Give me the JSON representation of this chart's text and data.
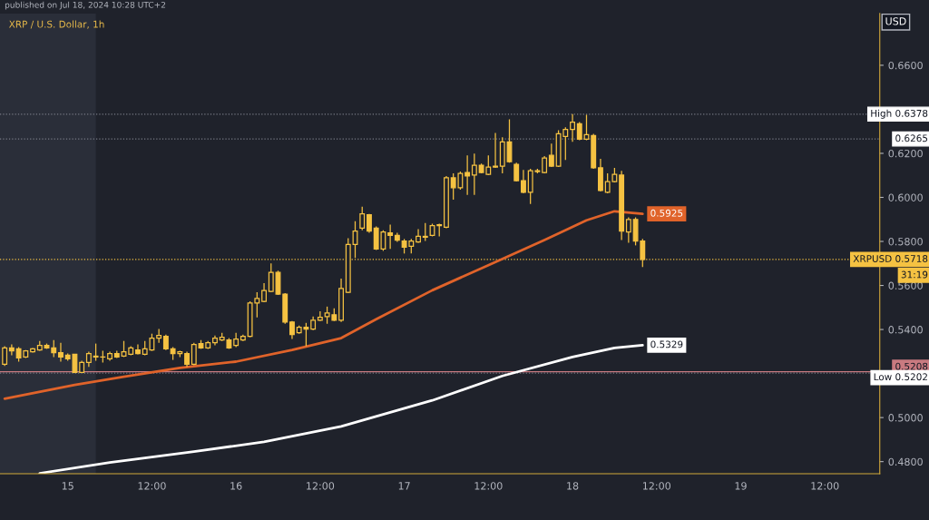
{
  "chart_data": {
    "type": "candlestick",
    "title": "XRP / U.S. Dollar, 1h",
    "ylabel": "USD",
    "color": "#f5c242",
    "x": [
      "2024-07-14T15:00",
      "2024-07-14T16:00",
      "2024-07-14T17:00",
      "2024-07-14T18:00",
      "2024-07-14T19:00",
      "2024-07-14T20:00",
      "2024-07-14T21:00",
      "2024-07-14T22:00",
      "2024-07-14T23:00",
      "2024-07-15T00:00",
      "2024-07-15T01:00",
      "2024-07-15T02:00",
      "2024-07-15T03:00",
      "2024-07-15T04:00",
      "2024-07-15T05:00",
      "2024-07-15T06:00",
      "2024-07-15T07:00",
      "2024-07-15T08:00",
      "2024-07-15T09:00",
      "2024-07-15T10:00",
      "2024-07-15T11:00",
      "2024-07-15T12:00",
      "2024-07-15T13:00",
      "2024-07-15T14:00",
      "2024-07-15T15:00",
      "2024-07-15T16:00",
      "2024-07-15T17:00",
      "2024-07-15T18:00",
      "2024-07-15T19:00",
      "2024-07-15T20:00",
      "2024-07-15T21:00",
      "2024-07-15T22:00",
      "2024-07-15T23:00",
      "2024-07-16T00:00",
      "2024-07-16T01:00",
      "2024-07-16T02:00",
      "2024-07-16T03:00",
      "2024-07-16T04:00",
      "2024-07-16T05:00",
      "2024-07-16T06:00",
      "2024-07-16T07:00",
      "2024-07-16T08:00",
      "2024-07-16T09:00",
      "2024-07-16T10:00",
      "2024-07-16T11:00",
      "2024-07-16T12:00",
      "2024-07-16T13:00",
      "2024-07-16T14:00",
      "2024-07-16T15:00",
      "2024-07-16T16:00",
      "2024-07-16T17:00",
      "2024-07-16T18:00",
      "2024-07-16T19:00",
      "2024-07-16T20:00",
      "2024-07-16T21:00",
      "2024-07-16T22:00",
      "2024-07-16T23:00",
      "2024-07-17T00:00",
      "2024-07-17T01:00",
      "2024-07-17T02:00",
      "2024-07-17T03:00",
      "2024-07-17T04:00",
      "2024-07-17T05:00",
      "2024-07-17T06:00",
      "2024-07-17T07:00",
      "2024-07-17T08:00",
      "2024-07-17T09:00",
      "2024-07-17T10:00",
      "2024-07-17T11:00",
      "2024-07-17T12:00",
      "2024-07-17T13:00",
      "2024-07-17T14:00",
      "2024-07-17T15:00",
      "2024-07-17T16:00",
      "2024-07-17T17:00",
      "2024-07-17T18:00",
      "2024-07-17T19:00",
      "2024-07-17T20:00",
      "2024-07-17T21:00",
      "2024-07-17T22:00",
      "2024-07-17T23:00",
      "2024-07-18T00:00",
      "2024-07-18T01:00",
      "2024-07-18T02:00",
      "2024-07-18T03:00",
      "2024-07-18T04:00",
      "2024-07-18T05:00",
      "2024-07-18T06:00",
      "2024-07-18T07:00",
      "2024-07-18T08:00",
      "2024-07-18T09:00",
      "2024-07-18T10:00"
    ],
    "ohlc": [
      [
        0.5242,
        0.5324,
        0.5234,
        0.5316
      ],
      [
        0.5316,
        0.5332,
        0.5283,
        0.5303
      ],
      [
        0.5312,
        0.532,
        0.5254,
        0.5271
      ],
      [
        0.5275,
        0.5307,
        0.5271,
        0.5303
      ],
      [
        0.5299,
        0.5316,
        0.5295,
        0.5312
      ],
      [
        0.5307,
        0.5348,
        0.5303,
        0.5328
      ],
      [
        0.5328,
        0.5336,
        0.5312,
        0.5316
      ],
      [
        0.5316,
        0.5352,
        0.5275,
        0.5295
      ],
      [
        0.5295,
        0.534,
        0.5254,
        0.5275
      ],
      [
        0.5283,
        0.5291,
        0.5258,
        0.5267
      ],
      [
        0.5287,
        0.5287,
        0.5202,
        0.5205
      ],
      [
        0.5205,
        0.5258,
        0.5202,
        0.525
      ],
      [
        0.525,
        0.5299,
        0.523,
        0.5291
      ],
      [
        0.5279,
        0.5336,
        0.5258,
        0.5275
      ],
      [
        0.5275,
        0.5303,
        0.525,
        0.5275
      ],
      [
        0.5267,
        0.5299,
        0.5258,
        0.5291
      ],
      [
        0.5291,
        0.5303,
        0.5271,
        0.5275
      ],
      [
        0.5279,
        0.5348,
        0.5275,
        0.5299
      ],
      [
        0.5287,
        0.5324,
        0.5283,
        0.5316
      ],
      [
        0.5307,
        0.5332,
        0.5287,
        0.5291
      ],
      [
        0.5287,
        0.5348,
        0.5283,
        0.5312
      ],
      [
        0.5307,
        0.5381,
        0.5303,
        0.5361
      ],
      [
        0.5361,
        0.5402,
        0.534,
        0.5373
      ],
      [
        0.5369,
        0.5377,
        0.5307,
        0.5312
      ],
      [
        0.5312,
        0.532,
        0.5262,
        0.5291
      ],
      [
        0.5291,
        0.5303,
        0.5275,
        0.5299
      ],
      [
        0.5291,
        0.5299,
        0.523,
        0.5242
      ],
      [
        0.5242,
        0.534,
        0.5238,
        0.5332
      ],
      [
        0.5336,
        0.5352,
        0.5312,
        0.5316
      ],
      [
        0.5316,
        0.5348,
        0.5312,
        0.534
      ],
      [
        0.534,
        0.5373,
        0.5328,
        0.5361
      ],
      [
        0.5352,
        0.5385,
        0.5348,
        0.5365
      ],
      [
        0.5352,
        0.5361,
        0.5312,
        0.5316
      ],
      [
        0.5328,
        0.5385,
        0.532,
        0.5357
      ],
      [
        0.5352,
        0.5377,
        0.5348,
        0.5369
      ],
      [
        0.5369,
        0.5528,
        0.5365,
        0.552
      ],
      [
        0.552,
        0.5569,
        0.5455,
        0.5541
      ],
      [
        0.5528,
        0.561,
        0.5524,
        0.5577
      ],
      [
        0.5573,
        0.57,
        0.5569,
        0.5659
      ],
      [
        0.5659,
        0.5667,
        0.5557,
        0.5561
      ],
      [
        0.5561,
        0.5565,
        0.5426,
        0.5434
      ],
      [
        0.5434,
        0.5438,
        0.5357,
        0.5377
      ],
      [
        0.5385,
        0.5418,
        0.5381,
        0.541
      ],
      [
        0.541,
        0.543,
        0.5324,
        0.5402
      ],
      [
        0.5402,
        0.5459,
        0.5397,
        0.5442
      ],
      [
        0.5442,
        0.5483,
        0.5438,
        0.5455
      ],
      [
        0.5459,
        0.5504,
        0.5426,
        0.5475
      ],
      [
        0.5467,
        0.5496,
        0.5438,
        0.5442
      ],
      [
        0.5442,
        0.5631,
        0.5434,
        0.5586
      ],
      [
        0.5569,
        0.5815,
        0.5565,
        0.5786
      ],
      [
        0.5786,
        0.5892,
        0.5725,
        0.5847
      ],
      [
        0.586,
        0.5958,
        0.5851,
        0.5925
      ],
      [
        0.5921,
        0.5925,
        0.5839,
        0.5847
      ],
      [
        0.586,
        0.5868,
        0.5761,
        0.5766
      ],
      [
        0.5766,
        0.5851,
        0.5757,
        0.5843
      ],
      [
        0.5839,
        0.5876,
        0.5766,
        0.5827
      ],
      [
        0.5827,
        0.5839,
        0.5798,
        0.5806
      ],
      [
        0.5802,
        0.5811,
        0.5745,
        0.5774
      ],
      [
        0.5778,
        0.5811,
        0.5745,
        0.5802
      ],
      [
        0.5798,
        0.5856,
        0.5794,
        0.5823
      ],
      [
        0.5823,
        0.5884,
        0.5802,
        0.5819
      ],
      [
        0.5827,
        0.588,
        0.5823,
        0.5872
      ],
      [
        0.5872,
        0.588,
        0.5823,
        0.5876
      ],
      [
        0.5864,
        0.6097,
        0.586,
        0.6089
      ],
      [
        0.6089,
        0.6109,
        0.599,
        0.6044
      ],
      [
        0.6044,
        0.6117,
        0.6035,
        0.6109
      ],
      [
        0.6113,
        0.6191,
        0.6011,
        0.6097
      ],
      [
        0.6101,
        0.6199,
        0.6011,
        0.6146
      ],
      [
        0.6146,
        0.6154,
        0.6109,
        0.6113
      ],
      [
        0.6105,
        0.6191,
        0.6101,
        0.6138
      ],
      [
        0.6138,
        0.6293,
        0.6134,
        0.6142
      ],
      [
        0.6142,
        0.6273,
        0.6109,
        0.6252
      ],
      [
        0.6252,
        0.6354,
        0.6158,
        0.6162
      ],
      [
        0.615,
        0.6158,
        0.6072,
        0.6076
      ],
      [
        0.6076,
        0.6125,
        0.6019,
        0.6023
      ],
      [
        0.6023,
        0.613,
        0.597,
        0.6121
      ],
      [
        0.6121,
        0.613,
        0.6109,
        0.6117
      ],
      [
        0.6113,
        0.6187,
        0.6109,
        0.6179
      ],
      [
        0.6191,
        0.6244,
        0.6138,
        0.6142
      ],
      [
        0.6142,
        0.6305,
        0.6138,
        0.6289
      ],
      [
        0.6277,
        0.6318,
        0.617,
        0.6309
      ],
      [
        0.6309,
        0.6378,
        0.6252,
        0.6342
      ],
      [
        0.6334,
        0.6342,
        0.626,
        0.6264
      ],
      [
        0.6264,
        0.6375,
        0.626,
        0.6285
      ],
      [
        0.6281,
        0.6289,
        0.613,
        0.6134
      ],
      [
        0.6134,
        0.6175,
        0.6027,
        0.6031
      ],
      [
        0.6023,
        0.6109,
        0.6019,
        0.6072
      ],
      [
        0.6072,
        0.6134,
        0.6068,
        0.6105
      ],
      [
        0.6101,
        0.6121,
        0.5806,
        0.5847
      ],
      [
        0.5843,
        0.5909,
        0.5794,
        0.59
      ],
      [
        0.59,
        0.5909,
        0.5782,
        0.5802
      ],
      [
        0.5802,
        0.5811,
        0.5684,
        0.5718
      ]
    ],
    "series": [
      {
        "type": "line",
        "color": "#e0632a",
        "x": [
          "2024-07-14T15:00",
          "2024-07-15T01:00",
          "2024-07-15T08:00",
          "2024-07-15T16:00",
          "2024-07-16T00:00",
          "2024-07-16T08:00",
          "2024-07-16T15:00",
          "2024-07-16T20:00",
          "2024-07-17T04:00",
          "2024-07-17T12:00",
          "2024-07-17T20:00",
          "2024-07-18T02:00",
          "2024-07-18T06:00",
          "2024-07-18T10:00"
        ],
        "values": [
          0.5086,
          0.5148,
          0.5185,
          0.5226,
          0.5254,
          0.5307,
          0.5361,
          0.5447,
          0.5578,
          0.5692,
          0.5806,
          0.5896,
          0.5937,
          0.5925
        ],
        "value_labels": [
          null,
          null,
          null,
          null,
          null,
          null,
          null,
          null,
          null,
          null,
          null,
          null,
          null,
          "0.5925"
        ]
      },
      {
        "type": "line",
        "color": "#ffffff",
        "x": [
          "2024-07-14T20:00",
          "2024-07-15T06:00",
          "2024-07-15T18:00",
          "2024-07-16T04:00",
          "2024-07-16T15:00",
          "2024-07-17T04:00",
          "2024-07-17T14:00",
          "2024-07-18T00:00",
          "2024-07-18T06:00",
          "2024-07-18T10:00"
        ],
        "values": [
          0.4747,
          0.4796,
          0.4845,
          0.489,
          0.496,
          0.5078,
          0.5189,
          0.5275,
          0.5316,
          0.5329
        ],
        "value_labels": [
          null,
          null,
          null,
          null,
          null,
          null,
          null,
          null,
          null,
          "0.5329"
        ]
      }
    ],
    "ref_lines": [
      {
        "axis": "y",
        "value": 0.6378,
        "label": "High 0.6378",
        "color": "#787b86",
        "line_style": "dotted"
      },
      {
        "axis": "y",
        "value": 0.6265,
        "label": "0.6265",
        "color": "#787b86",
        "line_style": "dotted"
      },
      {
        "axis": "y",
        "value": 0.5718,
        "label": "XRPUSD 0.5718",
        "color": "#f5c242",
        "line_style": "dotted"
      },
      {
        "axis": "y",
        "value": 0.5208,
        "label": "0.5208",
        "color": "#c97a80",
        "line_style": "solid"
      },
      {
        "axis": "y",
        "value": 0.5202,
        "label": "Low 0.5202",
        "color": "#787b86",
        "line_style": "dotted"
      }
    ],
    "bands": [
      {
        "axis": "x",
        "from": "2024-07-14T14:20",
        "to": "2024-07-15T04:00",
        "color": "#2a2e39"
      }
    ],
    "annotations": [
      "published on Jul 18, 2024 10:28 UTC+2",
      "31:19"
    ],
    "xlim": [
      "2024-07-14T14:20",
      "2024-07-19T19:50"
    ],
    "xticks": [
      {
        "value": "2024-07-15",
        "label": "15"
      },
      {
        "value": "2024-07-15T12:00",
        "label": "12:00"
      },
      {
        "value": "2024-07-16",
        "label": "16"
      },
      {
        "value": "2024-07-16T12:00",
        "label": "12:00"
      },
      {
        "value": "2024-07-17",
        "label": "17"
      },
      {
        "value": "2024-07-17T12:00",
        "label": "12:00"
      },
      {
        "value": "2024-07-18",
        "label": "18"
      },
      {
        "value": "2024-07-18T12:00",
        "label": "12:00"
      },
      {
        "value": "2024-07-19",
        "label": "19"
      },
      {
        "value": "2024-07-19T12:00",
        "label": "12:00"
      }
    ],
    "ylim": [
      0.4745,
      0.6835
    ],
    "yticks": [
      {
        "value": 0.48,
        "label": "0.4800"
      },
      {
        "value": 0.5,
        "label": "0.5000"
      },
      {
        "value": 0.54,
        "label": "0.5400"
      },
      {
        "value": 0.56,
        "label": "0.5600"
      },
      {
        "value": 0.58,
        "label": "0.5800"
      },
      {
        "value": 0.6,
        "label": "0.6000"
      },
      {
        "value": 0.62,
        "label": "0.6200"
      },
      {
        "value": 0.66,
        "label": "0.6600"
      }
    ],
    "grid": false,
    "legend": false
  }
}
